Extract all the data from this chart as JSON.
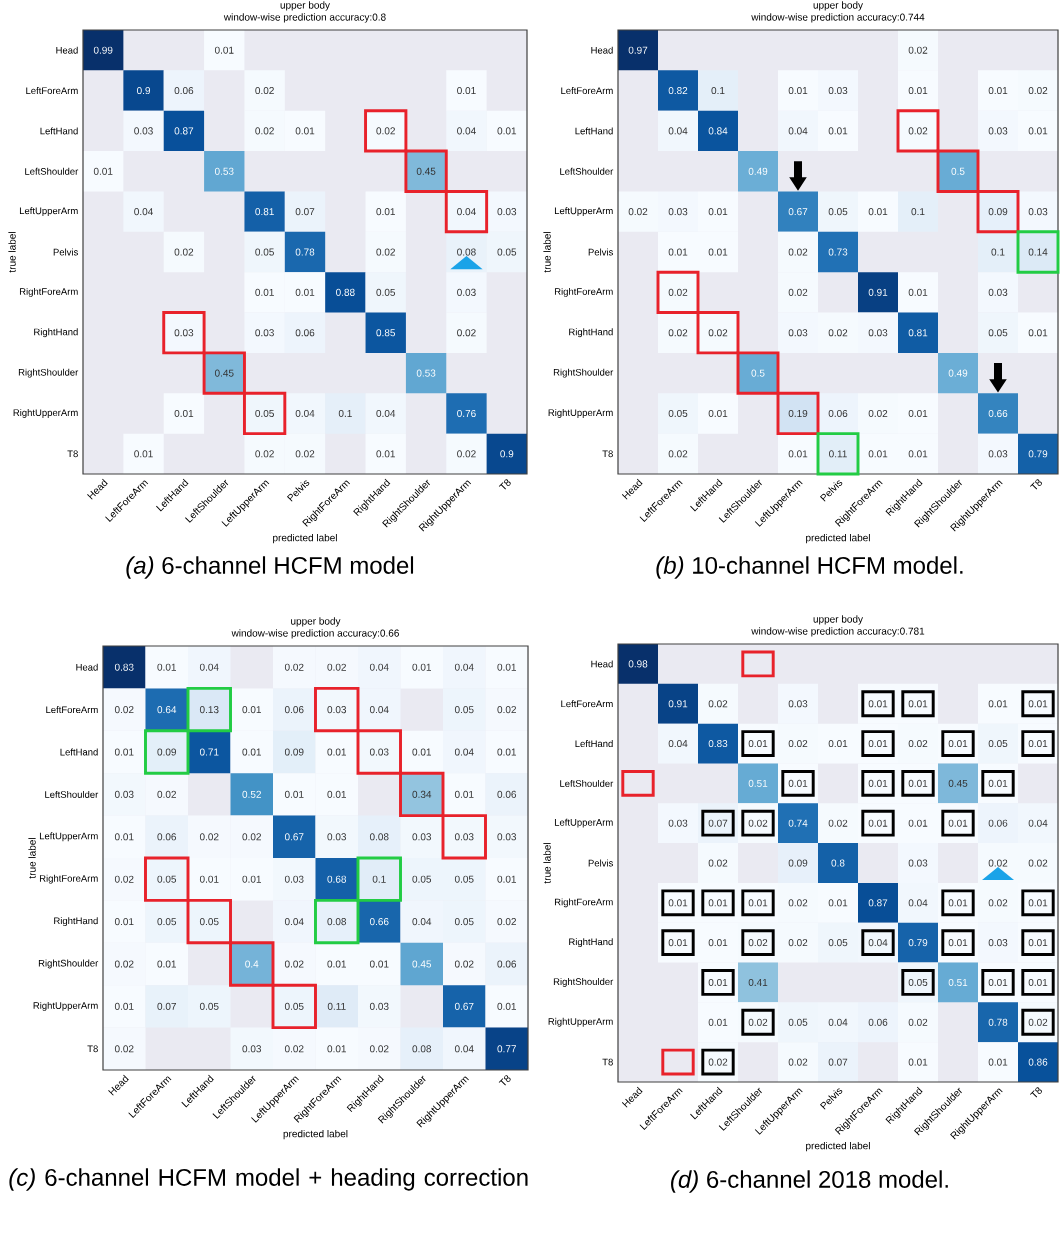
{
  "chart_data": [
    {
      "type": "heatmap",
      "title": "upper body",
      "subtitle": "window-wise prediction accuracy:0.8",
      "xlabel": "predicted label",
      "ylabel": "true label",
      "data_labels": true,
      "categories": [
        "Head",
        "LeftForeArm",
        "LeftHand",
        "LeftShoulder",
        "LeftUpperArm",
        "Pelvis",
        "RightForeArm",
        "RightHand",
        "RightShoulder",
        "RightUpperArm",
        "T8"
      ],
      "y_categories": [
        "Head",
        "LeftForeArm",
        "LeftHand",
        "LeftShoulder",
        "LeftUpperArm",
        "Pelvis",
        "RightForeArm",
        "RightHand",
        "RightShoulder",
        "RightUpperArm",
        "T8"
      ],
      "cells": [
        [
          0.99,
          null,
          null,
          0.01,
          null,
          null,
          null,
          null,
          null,
          null,
          null
        ],
        [
          null,
          0.9,
          0.06,
          null,
          0.02,
          null,
          null,
          null,
          null,
          0.01,
          null
        ],
        [
          null,
          0.03,
          0.87,
          null,
          0.02,
          0.01,
          null,
          0.02,
          null,
          0.04,
          0.01
        ],
        [
          0.01,
          null,
          null,
          0.53,
          null,
          null,
          null,
          null,
          0.45,
          null,
          null
        ],
        [
          null,
          0.04,
          null,
          null,
          0.81,
          0.07,
          null,
          0.01,
          null,
          0.04,
          0.03
        ],
        [
          null,
          null,
          0.02,
          null,
          0.05,
          0.78,
          null,
          0.02,
          null,
          0.08,
          0.05
        ],
        [
          null,
          null,
          null,
          null,
          0.01,
          0.01,
          0.88,
          0.05,
          null,
          0.03,
          null
        ],
        [
          null,
          null,
          0.03,
          null,
          0.03,
          0.06,
          null,
          0.85,
          null,
          0.02,
          null
        ],
        [
          null,
          null,
          null,
          0.45,
          null,
          null,
          null,
          null,
          0.53,
          null,
          null
        ],
        [
          null,
          null,
          0.01,
          null,
          0.05,
          0.04,
          0.1,
          0.04,
          null,
          0.76,
          null
        ],
        [
          null,
          0.01,
          null,
          null,
          0.02,
          0.02,
          null,
          0.01,
          null,
          0.02,
          0.9
        ]
      ],
      "annotations": [
        "*(a)* 6-channel HCFM model"
      ]
    },
    {
      "type": "heatmap",
      "title": "upper body",
      "subtitle": "window-wise prediction accuracy:0.744",
      "xlabel": "predicted label",
      "ylabel": "true label",
      "data_labels": true,
      "categories": [
        "Head",
        "LeftForeArm",
        "LeftHand",
        "LeftShoulder",
        "LeftUpperArm",
        "Pelvis",
        "RightForeArm",
        "RightHand",
        "RightShoulder",
        "RightUpperArm",
        "T8"
      ],
      "y_categories": [
        "Head",
        "LeftForeArm",
        "LeftHand",
        "LeftShoulder",
        "LeftUpperArm",
        "Pelvis",
        "RightForeArm",
        "RightHand",
        "RightShoulder",
        "RightUpperArm",
        "T8"
      ],
      "cells": [
        [
          0.97,
          null,
          null,
          null,
          null,
          null,
          null,
          0.02,
          null,
          null,
          null
        ],
        [
          null,
          0.82,
          0.1,
          null,
          0.01,
          0.03,
          null,
          0.01,
          null,
          0.01,
          0.02
        ],
        [
          null,
          0.04,
          0.84,
          null,
          0.04,
          0.01,
          null,
          0.02,
          null,
          0.03,
          0.01
        ],
        [
          null,
          null,
          null,
          0.49,
          null,
          null,
          null,
          null,
          0.5,
          null,
          null
        ],
        [
          0.02,
          0.03,
          0.01,
          null,
          0.67,
          0.05,
          0.01,
          0.1,
          null,
          0.09,
          0.03
        ],
        [
          null,
          0.01,
          0.01,
          null,
          0.02,
          0.73,
          null,
          null,
          null,
          0.1,
          0.14
        ],
        [
          null,
          0.02,
          null,
          null,
          0.02,
          null,
          0.91,
          0.01,
          null,
          0.03,
          null
        ],
        [
          null,
          0.02,
          0.02,
          null,
          0.03,
          0.02,
          0.03,
          0.81,
          null,
          0.05,
          0.01
        ],
        [
          null,
          null,
          null,
          0.5,
          null,
          null,
          null,
          null,
          0.49,
          null,
          null
        ],
        [
          null,
          0.05,
          0.01,
          null,
          0.19,
          0.06,
          0.02,
          0.01,
          null,
          0.66,
          null
        ],
        [
          null,
          0.02,
          null,
          null,
          0.01,
          0.11,
          0.01,
          0.01,
          null,
          0.03,
          0.79
        ]
      ],
      "annotations": [
        "*(b)* 10-channel HCFM model."
      ]
    },
    {
      "type": "heatmap",
      "title": "upper body",
      "subtitle": "window-wise prediction accuracy:0.66",
      "xlabel": "predicted label",
      "ylabel": "true label",
      "data_labels": true,
      "categories": [
        "Head",
        "LeftForeArm",
        "LeftHand",
        "LeftShoulder",
        "LeftUpperArm",
        "RightForeArm",
        "RightHand",
        "RightShoulder",
        "RightUpperArm",
        "T8"
      ],
      "y_categories": [
        "Head",
        "LeftForeArm",
        "LeftHand",
        "LeftShoulder",
        "LeftUpperArm",
        "RightForeArm",
        "RightHand",
        "RightShoulder",
        "RightUpperArm",
        "T8"
      ],
      "cells": [
        [
          0.83,
          0.01,
          0.04,
          null,
          0.02,
          0.02,
          0.04,
          0.01,
          0.04,
          0.01
        ],
        [
          0.02,
          0.64,
          0.13,
          0.01,
          0.06,
          0.03,
          0.04,
          null,
          0.05,
          0.02
        ],
        [
          0.01,
          0.09,
          0.71,
          0.01,
          0.09,
          0.01,
          0.03,
          0.01,
          0.04,
          0.01
        ],
        [
          0.03,
          0.02,
          null,
          0.52,
          0.01,
          0.01,
          null,
          0.34,
          0.01,
          0.06
        ],
        [
          0.01,
          0.06,
          0.02,
          0.02,
          0.67,
          0.03,
          0.08,
          0.03,
          0.03,
          0.03
        ],
        [
          0.02,
          0.05,
          0.01,
          0.01,
          0.03,
          0.68,
          0.1,
          0.05,
          0.05,
          0.01
        ],
        [
          0.01,
          0.05,
          0.05,
          null,
          0.04,
          0.08,
          0.66,
          0.04,
          0.05,
          0.02
        ],
        [
          0.02,
          0.01,
          null,
          0.4,
          0.02,
          0.01,
          0.01,
          0.45,
          0.02,
          0.06
        ],
        [
          0.01,
          0.07,
          0.05,
          null,
          0.05,
          0.11,
          0.03,
          null,
          0.67,
          0.01
        ],
        [
          0.02,
          null,
          null,
          0.03,
          0.02,
          0.01,
          0.02,
          0.08,
          0.04,
          0.77
        ]
      ],
      "annotations": [
        "*(c)* 6-channel HCFM model + heading correction"
      ]
    },
    {
      "type": "heatmap",
      "title": "upper body",
      "subtitle": "window-wise prediction accuracy:0.781",
      "xlabel": "predicted label",
      "ylabel": "true label",
      "data_labels": true,
      "categories": [
        "Head",
        "LeftForeArm",
        "LeftHand",
        "LeftShoulder",
        "LeftUpperArm",
        "Pelvis",
        "RightForeArm",
        "RightHand",
        "RightShoulder",
        "RightUpperArm",
        "T8"
      ],
      "y_categories": [
        "Head",
        "LeftForeArm",
        "LeftHand",
        "LeftShoulder",
        "LeftUpperArm",
        "Pelvis",
        "RightForeArm",
        "RightHand",
        "RightShoulder",
        "RightUpperArm",
        "T8"
      ],
      "cells": [
        [
          0.98,
          null,
          null,
          null,
          null,
          null,
          null,
          null,
          null,
          null,
          null
        ],
        [
          null,
          0.91,
          0.02,
          null,
          0.03,
          null,
          0.01,
          0.01,
          null,
          0.01,
          0.01
        ],
        [
          null,
          0.04,
          0.83,
          0.01,
          0.02,
          0.01,
          0.01,
          0.02,
          0.01,
          0.05,
          0.01
        ],
        [
          null,
          null,
          null,
          0.51,
          0.01,
          null,
          0.01,
          0.01,
          0.45,
          0.01,
          null
        ],
        [
          null,
          0.03,
          0.07,
          0.02,
          0.74,
          0.02,
          0.01,
          0.01,
          0.01,
          0.06,
          0.04
        ],
        [
          null,
          null,
          0.02,
          null,
          0.09,
          0.8,
          null,
          0.03,
          null,
          0.02,
          0.02
        ],
        [
          null,
          0.01,
          0.01,
          0.01,
          0.02,
          0.01,
          0.87,
          0.04,
          0.01,
          0.02,
          0.01
        ],
        [
          null,
          0.01,
          0.01,
          0.02,
          0.02,
          0.05,
          0.04,
          0.79,
          0.01,
          0.03,
          0.01
        ],
        [
          null,
          null,
          0.01,
          0.41,
          null,
          null,
          null,
          0.05,
          0.51,
          0.01,
          0.01
        ],
        [
          null,
          null,
          0.01,
          0.02,
          0.05,
          0.04,
          0.06,
          0.02,
          null,
          0.78,
          0.02
        ],
        [
          null,
          null,
          0.02,
          null,
          0.02,
          0.07,
          null,
          0.01,
          null,
          0.01,
          0.86
        ]
      ],
      "annotations": [
        "*(d)* 6-channel 2018 model."
      ]
    }
  ]
}
